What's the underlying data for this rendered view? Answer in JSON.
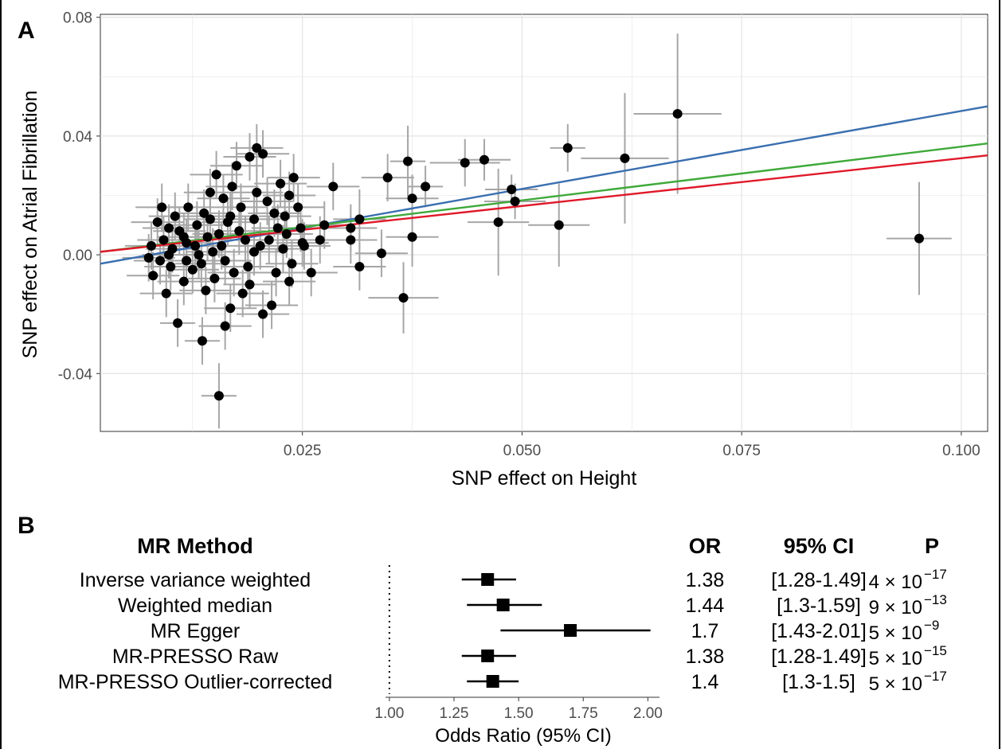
{
  "panels": {
    "a_label": "A",
    "b_label": "B"
  },
  "colors": {
    "blue": "#3a6fb0",
    "green": "#3fa93a",
    "red": "#e0192a",
    "point": "#000000",
    "errorbar": "#a6a6a6",
    "grid": "#e3e3e3"
  },
  "chart_data": [
    {
      "type": "scatter",
      "title": "",
      "xlabel": "SNP effect on Height",
      "ylabel": "SNP effect on Atrial Fibrillation",
      "xlim": [
        0.002,
        0.103
      ],
      "ylim": [
        -0.0595,
        0.081
      ],
      "x_ticks": [
        0.025,
        0.05,
        0.075,
        0.1
      ],
      "x_tick_labels": [
        "0.025",
        "0.050",
        "0.075",
        "0.100"
      ],
      "y_ticks": [
        -0.04,
        0,
        0.04,
        0.08
      ],
      "y_tick_labels": [
        "-0.04",
        "0.00",
        "0.04",
        "0.08"
      ],
      "grid": true,
      "lines": [
        {
          "color": "#3a6fb0",
          "x": [
            0.002,
            0.103
          ],
          "y": [
            -0.003,
            0.05
          ]
        },
        {
          "color": "#3fa93a",
          "x": [
            0.002,
            0.103
          ],
          "y": [
            0.001,
            0.0375
          ]
        },
        {
          "color": "#e0192a",
          "x": [
            0.002,
            0.103
          ],
          "y": [
            0.001,
            0.0335
          ]
        }
      ],
      "points": [
        {
          "x": 0.0677,
          "y": 0.0475,
          "xerr": 0.005,
          "yerr": 0.027
        },
        {
          "x": 0.0617,
          "y": 0.0325,
          "xerr": 0.005,
          "yerr": 0.022
        },
        {
          "x": 0.0552,
          "y": 0.036,
          "xerr": 0.002,
          "yerr": 0.008
        },
        {
          "x": 0.0952,
          "y": 0.0055,
          "xerr": 0.0037,
          "yerr": 0.019
        },
        {
          "x": 0.0542,
          "y": 0.01,
          "xerr": 0.0035,
          "yerr": 0.014
        },
        {
          "x": 0.0473,
          "y": 0.011,
          "xerr": 0.0035,
          "yerr": 0.018
        },
        {
          "x": 0.0488,
          "y": 0.022,
          "xerr": 0.003,
          "yerr": 0.005
        },
        {
          "x": 0.0492,
          "y": 0.018,
          "xerr": 0.0035,
          "yerr": 0.006
        },
        {
          "x": 0.0457,
          "y": 0.032,
          "xerr": 0.003,
          "yerr": 0.007
        },
        {
          "x": 0.0435,
          "y": 0.031,
          "xerr": 0.004,
          "yerr": 0.008
        },
        {
          "x": 0.037,
          "y": 0.0315,
          "xerr": 0.002,
          "yerr": 0.012
        },
        {
          "x": 0.0375,
          "y": 0.019,
          "xerr": 0.003,
          "yerr": 0.008
        },
        {
          "x": 0.039,
          "y": 0.023,
          "xerr": 0.002,
          "yerr": 0.007
        },
        {
          "x": 0.0375,
          "y": 0.006,
          "xerr": 0.003,
          "yerr": 0.01
        },
        {
          "x": 0.0365,
          "y": -0.0145,
          "xerr": 0.004,
          "yerr": 0.012
        },
        {
          "x": 0.034,
          "y": 0.0005,
          "xerr": 0.003,
          "yerr": 0.008
        },
        {
          "x": 0.0347,
          "y": 0.026,
          "xerr": 0.003,
          "yerr": 0.008
        },
        {
          "x": 0.0315,
          "y": 0.012,
          "xerr": 0.003,
          "yerr": 0.01
        },
        {
          "x": 0.0315,
          "y": -0.004,
          "xerr": 0.003,
          "yerr": 0.008
        },
        {
          "x": 0.0305,
          "y": 0.009,
          "xerr": 0.003,
          "yerr": 0.008
        },
        {
          "x": 0.0305,
          "y": 0.005,
          "xerr": 0.003,
          "yerr": 0.008
        },
        {
          "x": 0.0285,
          "y": 0.023,
          "xerr": 0.003,
          "yerr": 0.008
        },
        {
          "x": 0.0275,
          "y": 0.01,
          "xerr": 0.003,
          "yerr": 0.008
        },
        {
          "x": 0.027,
          "y": 0.005,
          "xerr": 0.003,
          "yerr": 0.008
        },
        {
          "x": 0.026,
          "y": -0.006,
          "xerr": 0.003,
          "yerr": 0.008
        },
        {
          "x": 0.025,
          "y": 0.004,
          "xerr": 0.003,
          "yerr": 0.008
        },
        {
          "x": 0.0245,
          "y": 0.016,
          "xerr": 0.003,
          "yerr": 0.008
        },
        {
          "x": 0.024,
          "y": 0.026,
          "xerr": 0.003,
          "yerr": 0.008
        },
        {
          "x": 0.0235,
          "y": 0.02,
          "xerr": 0.003,
          "yerr": 0.008
        },
        {
          "x": 0.023,
          "y": 0.013,
          "xerr": 0.003,
          "yerr": 0.008
        },
        {
          "x": 0.0225,
          "y": 0.024,
          "xerr": 0.003,
          "yerr": 0.008
        },
        {
          "x": 0.0222,
          "y": 0.009,
          "xerr": 0.003,
          "yerr": 0.008
        },
        {
          "x": 0.022,
          "y": -0.006,
          "xerr": 0.003,
          "yerr": 0.008
        },
        {
          "x": 0.0215,
          "y": -0.017,
          "xerr": 0.003,
          "yerr": 0.008
        },
        {
          "x": 0.021,
          "y": 0.018,
          "xerr": 0.003,
          "yerr": 0.008
        },
        {
          "x": 0.0205,
          "y": 0.034,
          "xerr": 0.003,
          "yerr": 0.008
        },
        {
          "x": 0.0205,
          "y": -0.02,
          "xerr": 0.003,
          "yerr": 0.008
        },
        {
          "x": 0.0202,
          "y": 0.003,
          "xerr": 0.003,
          "yerr": 0.008
        },
        {
          "x": 0.0198,
          "y": 0.036,
          "xerr": 0.003,
          "yerr": 0.008
        },
        {
          "x": 0.0195,
          "y": 0.012,
          "xerr": 0.003,
          "yerr": 0.008
        },
        {
          "x": 0.019,
          "y": 0.033,
          "xerr": 0.003,
          "yerr": 0.008
        },
        {
          "x": 0.019,
          "y": -0.01,
          "xerr": 0.003,
          "yerr": 0.008
        },
        {
          "x": 0.0185,
          "y": 0.005,
          "xerr": 0.003,
          "yerr": 0.008
        },
        {
          "x": 0.018,
          "y": 0.016,
          "xerr": 0.003,
          "yerr": 0.008
        },
        {
          "x": 0.0175,
          "y": 0.03,
          "xerr": 0.003,
          "yerr": 0.008
        },
        {
          "x": 0.0172,
          "y": -0.006,
          "xerr": 0.003,
          "yerr": 0.008
        },
        {
          "x": 0.017,
          "y": 0.023,
          "xerr": 0.003,
          "yerr": 0.008
        },
        {
          "x": 0.0168,
          "y": -0.018,
          "xerr": 0.003,
          "yerr": 0.008
        },
        {
          "x": 0.0165,
          "y": 0.011,
          "xerr": 0.003,
          "yerr": 0.008
        },
        {
          "x": 0.0162,
          "y": -0.024,
          "xerr": 0.003,
          "yerr": 0.008
        },
        {
          "x": 0.016,
          "y": 0.019,
          "xerr": 0.003,
          "yerr": 0.008
        },
        {
          "x": 0.0158,
          "y": 0.003,
          "xerr": 0.003,
          "yerr": 0.008
        },
        {
          "x": 0.0155,
          "y": -0.0475,
          "xerr": 0.002,
          "yerr": 0.011
        },
        {
          "x": 0.0152,
          "y": 0.027,
          "xerr": 0.003,
          "yerr": 0.008
        },
        {
          "x": 0.015,
          "y": -0.008,
          "xerr": 0.003,
          "yerr": 0.008
        },
        {
          "x": 0.0145,
          "y": 0.021,
          "xerr": 0.003,
          "yerr": 0.008
        },
        {
          "x": 0.0142,
          "y": 0.006,
          "xerr": 0.003,
          "yerr": 0.008
        },
        {
          "x": 0.014,
          "y": -0.012,
          "xerr": 0.003,
          "yerr": 0.008
        },
        {
          "x": 0.0138,
          "y": 0.014,
          "xerr": 0.003,
          "yerr": 0.008
        },
        {
          "x": 0.0136,
          "y": -0.029,
          "xerr": 0.002,
          "yerr": 0.008
        },
        {
          "x": 0.0132,
          "y": 0.0,
          "xerr": 0.003,
          "yerr": 0.008
        },
        {
          "x": 0.013,
          "y": 0.01,
          "xerr": 0.003,
          "yerr": 0.008
        },
        {
          "x": 0.0125,
          "y": -0.005,
          "xerr": 0.003,
          "yerr": 0.008
        },
        {
          "x": 0.012,
          "y": 0.016,
          "xerr": 0.003,
          "yerr": 0.008
        },
        {
          "x": 0.0118,
          "y": 0.004,
          "xerr": 0.003,
          "yerr": 0.008
        },
        {
          "x": 0.0115,
          "y": -0.009,
          "xerr": 0.003,
          "yerr": 0.008
        },
        {
          "x": 0.011,
          "y": 0.008,
          "xerr": 0.003,
          "yerr": 0.008
        },
        {
          "x": 0.0108,
          "y": -0.023,
          "xerr": 0.002,
          "yerr": 0.008
        },
        {
          "x": 0.0105,
          "y": 0.013,
          "xerr": 0.003,
          "yerr": 0.008
        },
        {
          "x": 0.0102,
          "y": 0.002,
          "xerr": 0.003,
          "yerr": 0.008
        },
        {
          "x": 0.01,
          "y": -0.004,
          "xerr": 0.003,
          "yerr": 0.008
        },
        {
          "x": 0.0098,
          "y": 0.009,
          "xerr": 0.003,
          "yerr": 0.008
        },
        {
          "x": 0.0095,
          "y": -0.013,
          "xerr": 0.003,
          "yerr": 0.008
        },
        {
          "x": 0.0092,
          "y": 0.005,
          "xerr": 0.003,
          "yerr": 0.008
        },
        {
          "x": 0.009,
          "y": 0.016,
          "xerr": 0.003,
          "yerr": 0.008
        },
        {
          "x": 0.0088,
          "y": -0.002,
          "xerr": 0.003,
          "yerr": 0.008
        },
        {
          "x": 0.0085,
          "y": 0.011,
          "xerr": 0.003,
          "yerr": 0.008
        },
        {
          "x": 0.008,
          "y": -0.007,
          "xerr": 0.003,
          "yerr": 0.008
        },
        {
          "x": 0.0078,
          "y": 0.003,
          "xerr": 0.003,
          "yerr": 0.008
        },
        {
          "x": 0.0075,
          "y": -0.001,
          "xerr": 0.003,
          "yerr": 0.008
        },
        {
          "x": 0.0128,
          "y": 0.003,
          "xerr": 0.003,
          "yerr": 0.008
        },
        {
          "x": 0.0135,
          "y": -0.003,
          "xerr": 0.003,
          "yerr": 0.008
        },
        {
          "x": 0.0148,
          "y": 0.001,
          "xerr": 0.003,
          "yerr": 0.008
        },
        {
          "x": 0.0155,
          "y": 0.007,
          "xerr": 0.003,
          "yerr": 0.008
        },
        {
          "x": 0.0162,
          "y": -0.002,
          "xerr": 0.003,
          "yerr": 0.008
        },
        {
          "x": 0.0178,
          "y": 0.008,
          "xerr": 0.003,
          "yerr": 0.008
        },
        {
          "x": 0.0188,
          "y": -0.004,
          "xerr": 0.003,
          "yerr": 0.008
        },
        {
          "x": 0.0195,
          "y": 0.001,
          "xerr": 0.003,
          "yerr": 0.008
        },
        {
          "x": 0.0212,
          "y": 0.005,
          "xerr": 0.003,
          "yerr": 0.008
        },
        {
          "x": 0.0218,
          "y": 0.014,
          "xerr": 0.003,
          "yerr": 0.008
        },
        {
          "x": 0.0228,
          "y": 0.002,
          "xerr": 0.003,
          "yerr": 0.008
        },
        {
          "x": 0.0232,
          "y": 0.007,
          "xerr": 0.003,
          "yerr": 0.008
        },
        {
          "x": 0.0238,
          "y": -0.003,
          "xerr": 0.003,
          "yerr": 0.008
        },
        {
          "x": 0.0248,
          "y": 0.009,
          "xerr": 0.003,
          "yerr": 0.008
        },
        {
          "x": 0.0252,
          "y": 0.003,
          "xerr": 0.003,
          "yerr": 0.008
        },
        {
          "x": 0.0145,
          "y": 0.012,
          "xerr": 0.003,
          "yerr": 0.008
        },
        {
          "x": 0.0168,
          "y": 0.013,
          "xerr": 0.003,
          "yerr": 0.008
        },
        {
          "x": 0.0115,
          "y": 0.006,
          "xerr": 0.003,
          "yerr": 0.008
        },
        {
          "x": 0.0098,
          "y": 0.0,
          "xerr": 0.003,
          "yerr": 0.008
        },
        {
          "x": 0.0118,
          "y": -0.002,
          "xerr": 0.003,
          "yerr": 0.008
        },
        {
          "x": 0.0182,
          "y": -0.013,
          "xerr": 0.003,
          "yerr": 0.008
        },
        {
          "x": 0.0198,
          "y": 0.021,
          "xerr": 0.003,
          "yerr": 0.008
        },
        {
          "x": 0.0235,
          "y": -0.009,
          "xerr": 0.003,
          "yerr": 0.008
        }
      ]
    },
    {
      "type": "forest",
      "title": "",
      "xlabel": "Odds Ratio (95% CI)",
      "xlim": [
        0.985,
        2.045
      ],
      "x_ticks": [
        1.0,
        1.25,
        1.5,
        1.75,
        2.0
      ],
      "x_tick_labels": [
        "1.00",
        "1.25",
        "1.50",
        "1.75",
        "2.00"
      ],
      "reference": 1.0,
      "header": {
        "method": "MR Method",
        "or": "OR",
        "ci": "95% CI",
        "p": "P"
      },
      "rows": [
        {
          "method": "Inverse variance weighted",
          "or": 1.38,
          "lo": 1.28,
          "hi": 1.49,
          "or_text": "1.38",
          "ci_text": "[1.28-1.49]",
          "p_mant": "4",
          "p_exp": "−17"
        },
        {
          "method": "Weighted median",
          "or": 1.44,
          "lo": 1.3,
          "hi": 1.59,
          "or_text": "1.44",
          "ci_text": "[1.3-1.59]",
          "p_mant": "9",
          "p_exp": "−13"
        },
        {
          "method": "MR Egger",
          "or": 1.7,
          "lo": 1.43,
          "hi": 2.01,
          "or_text": "1.7",
          "ci_text": "[1.43-2.01]",
          "p_mant": "5",
          "p_exp": "−9"
        },
        {
          "method": "MR-PRESSO Raw",
          "or": 1.38,
          "lo": 1.28,
          "hi": 1.49,
          "or_text": "1.38",
          "ci_text": "[1.28-1.49]",
          "p_mant": "5",
          "p_exp": "−15"
        },
        {
          "method": "MR-PRESSO Outlier-corrected",
          "or": 1.4,
          "lo": 1.3,
          "hi": 1.5,
          "or_text": "1.4",
          "ci_text": "[1.3-1.5]",
          "p_mant": "5",
          "p_exp": "−17"
        }
      ]
    }
  ]
}
